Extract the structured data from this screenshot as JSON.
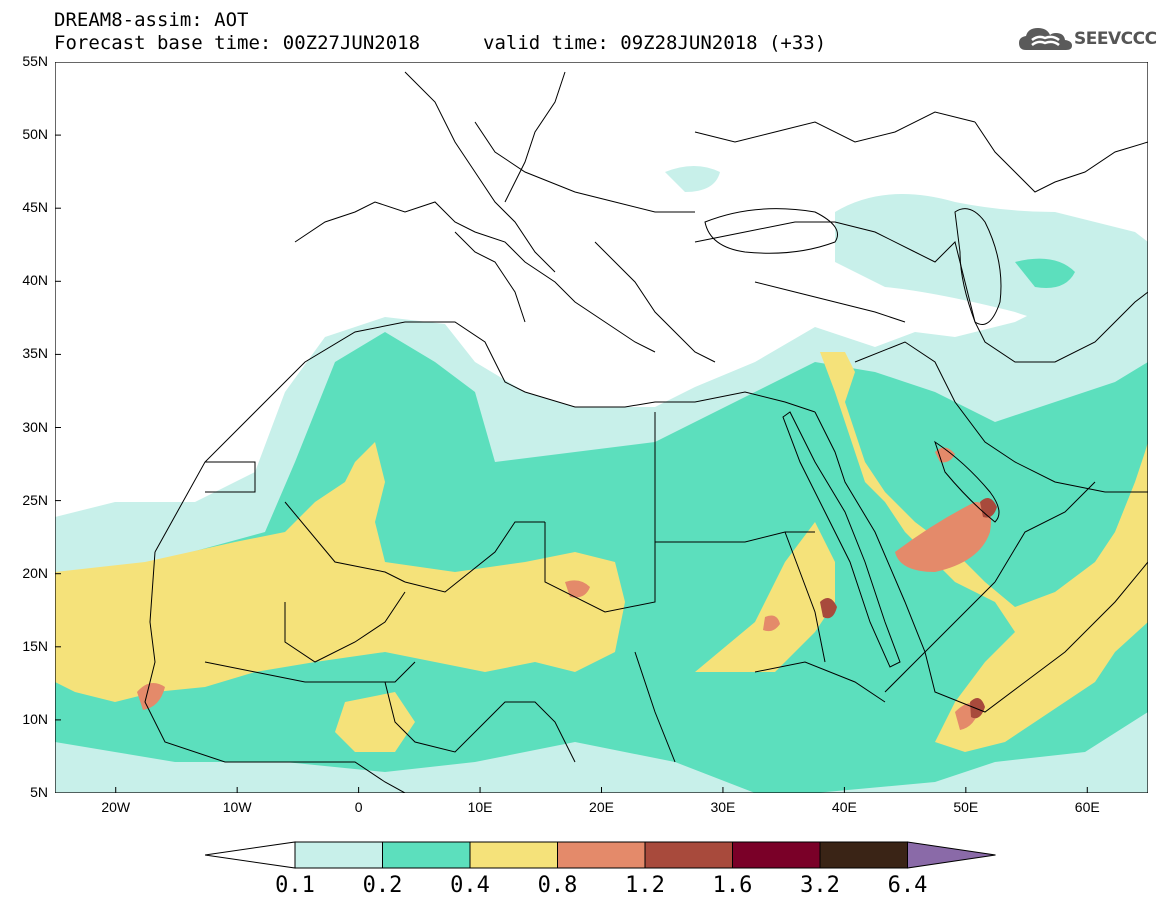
{
  "title": {
    "line1": "DREAM8-assim: AOT",
    "line2": "Forecast base time: 00Z27JUN2018",
    "valid": "valid time: 09Z28JUN2018 (+33)"
  },
  "logo": {
    "text": "SEEVCCC",
    "icon": "cloud-icon"
  },
  "map": {
    "lon_range": [
      -25,
      65
    ],
    "lat_range": [
      5,
      55
    ],
    "lat_labels": [
      "55N",
      "50N",
      "45N",
      "40N",
      "35N",
      "30N",
      "25N",
      "20N",
      "15N",
      "10N",
      "5N"
    ],
    "lon_labels": [
      "20W",
      "10W",
      "0",
      "10E",
      "20E",
      "30E",
      "40E",
      "50E",
      "60E"
    ]
  },
  "colorbar": {
    "labels": [
      "0.1",
      "0.2",
      "0.4",
      "0.8",
      "1.2",
      "1.6",
      "3.2",
      "6.4"
    ],
    "colors": [
      "#c8f0ea",
      "#5cdfbd",
      "#f5e27a",
      "#e48a6a",
      "#a84a3c",
      "#7a0028",
      "#3a2416",
      "#8a6aa8"
    ]
  }
}
